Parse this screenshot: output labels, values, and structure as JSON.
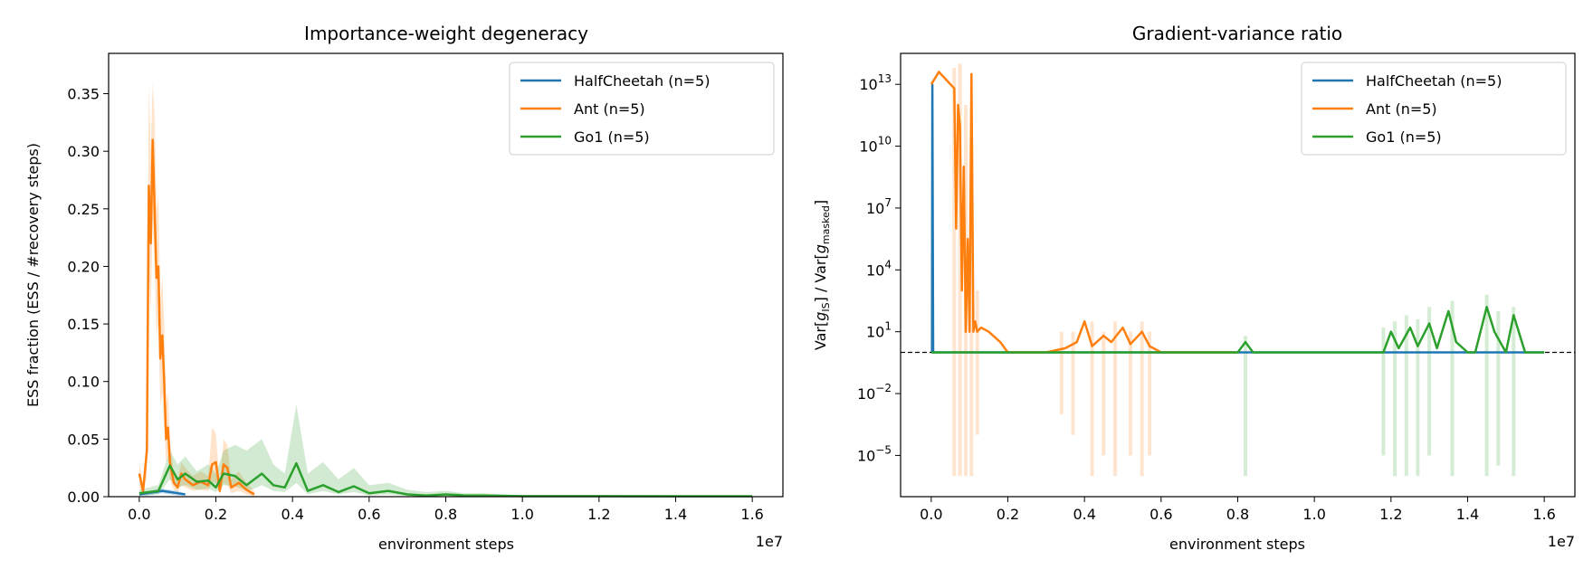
{
  "colors": {
    "halfcheetah": "#1f77b4",
    "ant": "#ff7f0e",
    "go1": "#2ca02c"
  },
  "chart_data": [
    {
      "type": "line",
      "title": "Importance-weight degeneracy",
      "xlabel": "environment steps",
      "ylabel": "ESS fraction (ESS / #recovery steps)",
      "x_offset_text": "1e7",
      "xlim": [
        -0.08,
        1.68
      ],
      "ylim": [
        0.0,
        0.385
      ],
      "xticks": [
        0.0,
        0.2,
        0.4,
        0.6,
        0.8,
        1.0,
        1.2,
        1.4,
        1.6
      ],
      "xtick_labels": [
        "0.0",
        "0.2",
        "0.4",
        "0.6",
        "0.8",
        "1.0",
        "1.2",
        "1.4",
        "1.6"
      ],
      "yticks": [
        0.0,
        0.05,
        0.1,
        0.15,
        0.2,
        0.25,
        0.3,
        0.35
      ],
      "ytick_labels": [
        "0.00",
        "0.05",
        "0.10",
        "0.15",
        "0.20",
        "0.25",
        "0.30",
        "0.35"
      ],
      "grid": false,
      "legend_position": "top-right",
      "series": [
        {
          "name": "HalfCheetah (n=5)",
          "color_key": "halfcheetah",
          "x": [
            0.0,
            0.02,
            0.04,
            0.06,
            0.08,
            0.1,
            0.12
          ],
          "y": [
            0.002,
            0.003,
            0.004,
            0.005,
            0.004,
            0.003,
            0.002
          ],
          "band_lo": [
            0.001,
            0.001,
            0.002,
            0.003,
            0.002,
            0.001,
            0.001
          ],
          "band_hi": [
            0.003,
            0.004,
            0.006,
            0.007,
            0.006,
            0.005,
            0.003
          ]
        },
        {
          "name": "Ant (n=5)",
          "color_key": "ant",
          "x": [
            0.0,
            0.01,
            0.02,
            0.025,
            0.03,
            0.035,
            0.04,
            0.045,
            0.05,
            0.055,
            0.06,
            0.065,
            0.07,
            0.075,
            0.08,
            0.09,
            0.1,
            0.11,
            0.12,
            0.14,
            0.16,
            0.18,
            0.19,
            0.2,
            0.21,
            0.22,
            0.23,
            0.24,
            0.26,
            0.28,
            0.3
          ],
          "y": [
            0.02,
            0.005,
            0.04,
            0.27,
            0.22,
            0.31,
            0.25,
            0.19,
            0.2,
            0.12,
            0.14,
            0.1,
            0.05,
            0.06,
            0.03,
            0.012,
            0.008,
            0.02,
            0.015,
            0.01,
            0.013,
            0.01,
            0.028,
            0.03,
            0.005,
            0.028,
            0.025,
            0.008,
            0.012,
            0.006,
            0.002
          ],
          "band_lo": [
            0.008,
            0.002,
            0.02,
            0.2,
            0.16,
            0.24,
            0.2,
            0.14,
            0.15,
            0.08,
            0.09,
            0.06,
            0.03,
            0.035,
            0.015,
            0.006,
            0.004,
            0.01,
            0.008,
            0.005,
            0.006,
            0.005,
            0.012,
            0.012,
            0.002,
            0.012,
            0.01,
            0.003,
            0.005,
            0.002,
            0.0
          ],
          "band_hi": [
            0.03,
            0.01,
            0.06,
            0.36,
            0.3,
            0.36,
            0.33,
            0.25,
            0.26,
            0.17,
            0.19,
            0.15,
            0.08,
            0.09,
            0.05,
            0.02,
            0.014,
            0.03,
            0.025,
            0.018,
            0.022,
            0.018,
            0.06,
            0.055,
            0.01,
            0.05,
            0.045,
            0.015,
            0.022,
            0.012,
            0.005
          ]
        },
        {
          "name": "Go1 (n=5)",
          "color_key": "go1",
          "x": [
            0.0,
            0.05,
            0.08,
            0.1,
            0.12,
            0.15,
            0.18,
            0.2,
            0.22,
            0.25,
            0.28,
            0.3,
            0.32,
            0.35,
            0.38,
            0.41,
            0.44,
            0.48,
            0.52,
            0.56,
            0.6,
            0.65,
            0.7,
            0.75,
            0.8,
            0.85,
            0.9,
            1.0,
            1.2,
            1.4,
            1.6
          ],
          "y": [
            0.003,
            0.005,
            0.027,
            0.015,
            0.02,
            0.013,
            0.014,
            0.008,
            0.02,
            0.018,
            0.01,
            0.015,
            0.02,
            0.01,
            0.008,
            0.029,
            0.005,
            0.01,
            0.004,
            0.009,
            0.003,
            0.005,
            0.002,
            0.001,
            0.002,
            0.001,
            0.001,
            0.0005,
            0.0005,
            0.0004,
            0.0004
          ],
          "band_lo": [
            0.001,
            0.002,
            0.015,
            0.008,
            0.01,
            0.006,
            0.007,
            0.004,
            0.01,
            0.009,
            0.005,
            0.007,
            0.01,
            0.005,
            0.004,
            0.012,
            0.002,
            0.005,
            0.002,
            0.004,
            0.001,
            0.002,
            0.0005,
            0.0002,
            0.0005,
            0.0002,
            0.0002,
            0.0001,
            0.0001,
            0.0001,
            0.0001
          ],
          "band_hi": [
            0.006,
            0.01,
            0.04,
            0.028,
            0.035,
            0.022,
            0.028,
            0.02,
            0.04,
            0.045,
            0.04,
            0.045,
            0.05,
            0.028,
            0.02,
            0.08,
            0.02,
            0.03,
            0.015,
            0.025,
            0.01,
            0.012,
            0.006,
            0.004,
            0.005,
            0.003,
            0.003,
            0.001,
            0.001,
            0.001,
            0.001
          ]
        }
      ]
    },
    {
      "type": "line",
      "title": "Gradient-variance ratio",
      "xlabel": "environment steps",
      "ylabel": "Var[g_IS] / Var[g_masked]",
      "ylabel_parts": {
        "pre": "Var[",
        "sym1": "g",
        "sub1": "IS",
        "mid": "] / Var[",
        "sym2": "g",
        "sub2": "masked",
        "post": "]"
      },
      "x_offset_text": "1e7",
      "xlim": [
        -0.08,
        1.68
      ],
      "yscale": "log",
      "ylim_log10": [
        -7.0,
        14.5
      ],
      "xticks": [
        0.0,
        0.2,
        0.4,
        0.6,
        0.8,
        1.0,
        1.2,
        1.4,
        1.6
      ],
      "xtick_labels": [
        "0.0",
        "0.2",
        "0.4",
        "0.6",
        "0.8",
        "1.0",
        "1.2",
        "1.4",
        "1.6"
      ],
      "yticks_log10": [
        -5,
        -2,
        1,
        4,
        7,
        10,
        13
      ],
      "ytick_labels": [
        {
          "base": "10",
          "exp": "−5"
        },
        {
          "base": "10",
          "exp": "−2"
        },
        {
          "base": "10",
          "exp": "1"
        },
        {
          "base": "10",
          "exp": "4"
        },
        {
          "base": "10",
          "exp": "7"
        },
        {
          "base": "10",
          "exp": "10"
        },
        {
          "base": "10",
          "exp": "13"
        }
      ],
      "reference_line_log10": 0.0,
      "grid": false,
      "legend_position": "top-right",
      "series": [
        {
          "name": "HalfCheetah (n=5)",
          "color_key": "halfcheetah",
          "x": [
            0.0,
            0.002,
            0.003,
            0.005,
            0.1,
            0.2,
            0.5,
            1.0,
            1.6
          ],
          "log10_y": [
            0.0,
            0.0,
            13.0,
            0.0,
            0.0,
            0.0,
            0.0,
            0.0,
            0.0
          ]
        },
        {
          "name": "Ant (n=5)",
          "color_key": "ant",
          "x": [
            0.0,
            0.02,
            0.04,
            0.06,
            0.065,
            0.07,
            0.075,
            0.08,
            0.085,
            0.09,
            0.095,
            0.1,
            0.105,
            0.11,
            0.115,
            0.12,
            0.13,
            0.15,
            0.18,
            0.2,
            0.25,
            0.3,
            0.35,
            0.38,
            0.4,
            0.42,
            0.45,
            0.47,
            0.5,
            0.52,
            0.55,
            0.57,
            0.6,
            0.7,
            0.8
          ],
          "log10_y": [
            13.0,
            13.6,
            13.2,
            12.8,
            6.0,
            12.0,
            11.0,
            3.0,
            9.0,
            1.0,
            5.5,
            1.0,
            13.5,
            1.0,
            1.5,
            1.0,
            1.2,
            1.0,
            0.5,
            0.0,
            0.0,
            0.0,
            0.2,
            0.5,
            1.5,
            0.3,
            0.8,
            0.5,
            1.2,
            0.4,
            1.0,
            0.3,
            0.0,
            0.0,
            0.0
          ]
        },
        {
          "name": "Go1 (n=5)",
          "color_key": "go1",
          "x": [
            0.0,
            0.2,
            0.4,
            0.6,
            0.8,
            0.82,
            0.84,
            1.0,
            1.18,
            1.2,
            1.22,
            1.25,
            1.27,
            1.3,
            1.32,
            1.35,
            1.37,
            1.4,
            1.42,
            1.45,
            1.47,
            1.5,
            1.52,
            1.55,
            1.6
          ],
          "log10_y": [
            0.0,
            0.0,
            0.0,
            0.0,
            0.0,
            0.5,
            0.0,
            0.0,
            0.0,
            1.0,
            0.2,
            1.2,
            0.3,
            1.4,
            0.2,
            2.0,
            0.5,
            0.0,
            0.0,
            2.2,
            1.0,
            0.0,
            1.8,
            0.0,
            0.0
          ]
        }
      ],
      "bands_log10": [
        {
          "color_key": "ant",
          "x": [
            0.06,
            0.075,
            0.09,
            0.105,
            0.12,
            0.34,
            0.37,
            0.42,
            0.45,
            0.48,
            0.52,
            0.55,
            0.57
          ],
          "lo": [
            -6.0,
            -6.0,
            -6.0,
            -6.0,
            -4.0,
            -3.0,
            -4.0,
            -6.0,
            -5.0,
            -6.0,
            -5.0,
            -6.0,
            -5.0
          ],
          "hi": [
            13.8,
            14.0,
            12.0,
            10.0,
            3.0,
            1.0,
            1.0,
            1.5,
            1.0,
            1.5,
            1.0,
            1.5,
            1.0
          ]
        },
        {
          "color_key": "go1",
          "x": [
            0.82,
            1.18,
            1.21,
            1.24,
            1.27,
            1.3,
            1.36,
            1.45,
            1.48,
            1.52
          ],
          "lo": [
            -6.0,
            -5.0,
            -6.0,
            -6.0,
            -6.0,
            -5.0,
            -6.0,
            -6.0,
            -5.5,
            -6.0
          ],
          "hi": [
            0.8,
            1.2,
            1.5,
            1.8,
            1.6,
            2.2,
            2.5,
            2.8,
            2.0,
            2.2
          ]
        }
      ]
    }
  ]
}
